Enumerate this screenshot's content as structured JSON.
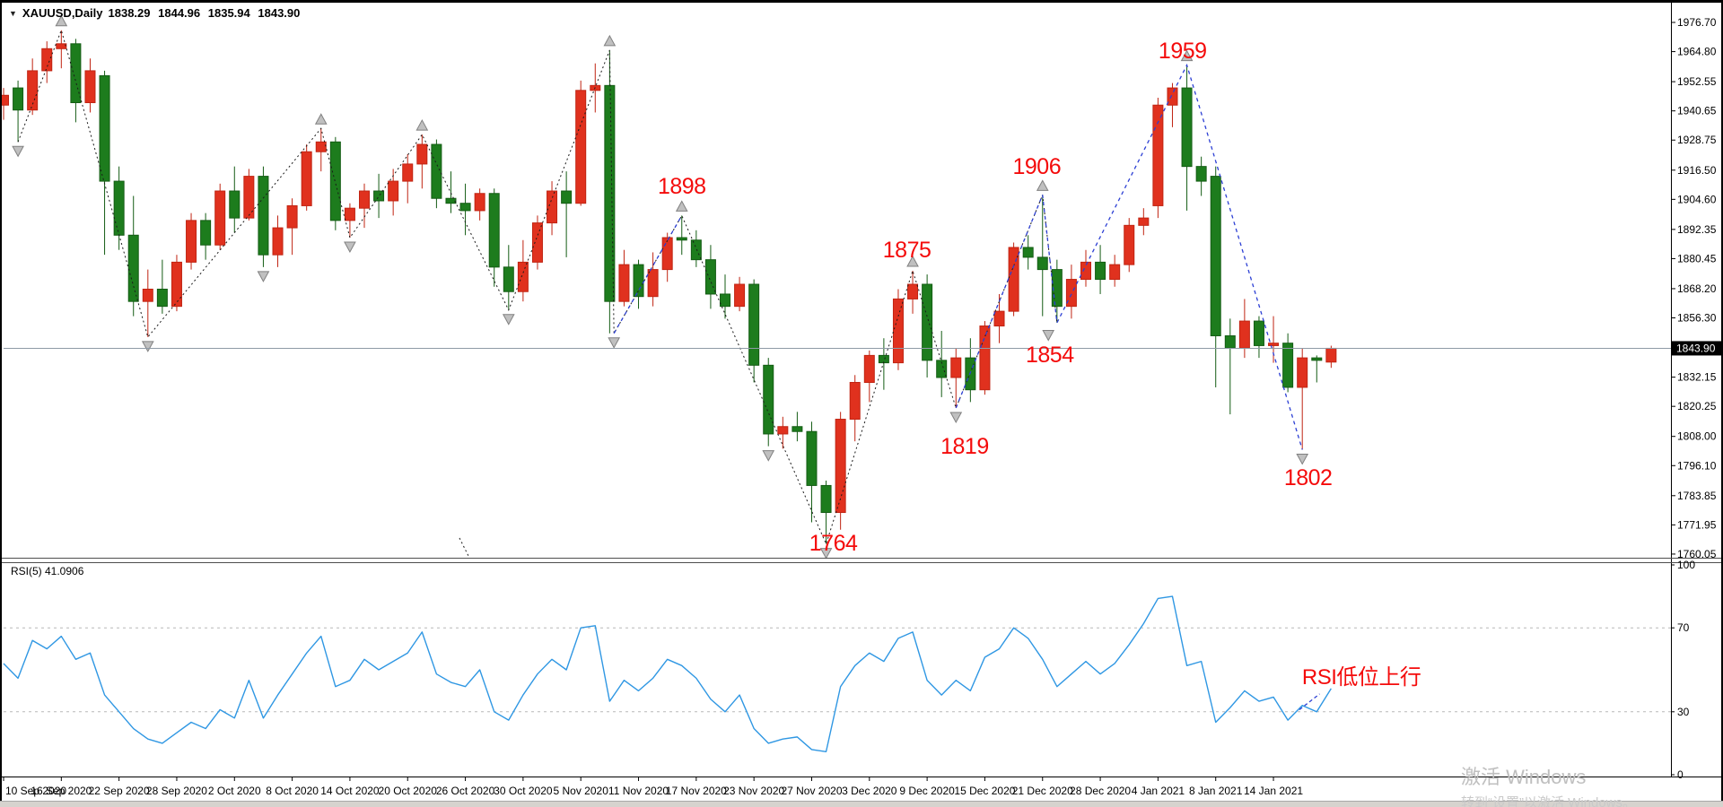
{
  "header": {
    "dropdown_icon": "▼",
    "symbol": "XAUUSD,Daily",
    "open": "1838.29",
    "high": "1844.96",
    "low": "1835.94",
    "close": "1843.90"
  },
  "watermark": {
    "line1": "激活 Windows",
    "line2": "转到“设置”以激活 Windows。"
  },
  "rsi": {
    "label": "RSI(5) 41.0906",
    "period": 5,
    "current_value": "41.0906"
  },
  "price_axis": {
    "labels": [
      "1976.70",
      "1964.80",
      "1952.55",
      "1940.65",
      "1928.75",
      "1916.50",
      "1904.60",
      "1892.35",
      "1880.45",
      "1868.20",
      "1856.30",
      "1843.90",
      "1832.15",
      "1820.25",
      "1808.00",
      "1796.10",
      "1783.85",
      "1771.95",
      "1760.05"
    ],
    "current": "1843.90"
  },
  "time_axis": {
    "labels": [
      {
        "text": "10 Sep 2020",
        "bar": 0
      },
      {
        "text": "16 Sep 2020",
        "bar": 4
      },
      {
        "text": "22 Sep 2020",
        "bar": 8
      },
      {
        "text": "28 Sep 2020",
        "bar": 12
      },
      {
        "text": "2 Oct 2020",
        "bar": 16
      },
      {
        "text": "8 Oct 2020",
        "bar": 20
      },
      {
        "text": "14 Oct 2020",
        "bar": 24
      },
      {
        "text": "20 Oct 2020",
        "bar": 28
      },
      {
        "text": "26 Oct 2020",
        "bar": 32
      },
      {
        "text": "30 Oct 2020",
        "bar": 36
      },
      {
        "text": "5 Nov 2020",
        "bar": 40
      },
      {
        "text": "11 Nov 2020",
        "bar": 44
      },
      {
        "text": "17 Nov 2020",
        "bar": 48
      },
      {
        "text": "23 Nov 2020",
        "bar": 52
      },
      {
        "text": "27 Nov 2020",
        "bar": 56
      },
      {
        "text": "3 Dec 2020",
        "bar": 60
      },
      {
        "text": "9 Dec 2020",
        "bar": 64
      },
      {
        "text": "15 Dec 2020",
        "bar": 68
      },
      {
        "text": "21 Dec 2020",
        "bar": 72
      },
      {
        "text": "28 Dec 2020",
        "bar": 76
      },
      {
        "text": "4 Jan 2021",
        "bar": 80
      },
      {
        "text": "8 Jan 2021",
        "bar": 84
      },
      {
        "text": "14 Jan 2021",
        "bar": 88
      }
    ]
  },
  "chart_data": {
    "type": "candlestick",
    "symbol": "XAUUSD",
    "timeframe": "Daily",
    "price_range": [
      1760.05,
      1976.7
    ],
    "current_price": 1843.9,
    "up_color_note": "red = bullish, green = bearish (Chinese convention)",
    "bars": [
      [
        1943,
        1950,
        1937,
        1947
      ],
      [
        1950,
        1953,
        1928,
        1941
      ],
      [
        1941,
        1962,
        1939,
        1957
      ],
      [
        1957,
        1969,
        1952,
        1966
      ],
      [
        1966,
        1973.5,
        1958,
        1968
      ],
      [
        1968,
        1970,
        1936,
        1944
      ],
      [
        1944,
        1962,
        1940,
        1957
      ],
      [
        1955,
        1957,
        1882,
        1912
      ],
      [
        1912,
        1918,
        1884,
        1890
      ],
      [
        1890,
        1906,
        1857,
        1863
      ],
      [
        1863,
        1876,
        1848.5,
        1868
      ],
      [
        1868,
        1880,
        1858,
        1861
      ],
      [
        1861,
        1882,
        1859,
        1879
      ],
      [
        1879,
        1899,
        1876,
        1896
      ],
      [
        1896,
        1899,
        1880,
        1886
      ],
      [
        1886,
        1911,
        1884,
        1908
      ],
      [
        1908,
        1918,
        1891,
        1897
      ],
      [
        1897,
        1917,
        1896,
        1914
      ],
      [
        1914,
        1918,
        1877,
        1882
      ],
      [
        1882,
        1898,
        1877,
        1893
      ],
      [
        1893,
        1905,
        1882,
        1902
      ],
      [
        1902,
        1927,
        1900,
        1924
      ],
      [
        1924,
        1933.5,
        1916,
        1928
      ],
      [
        1928,
        1930,
        1892,
        1896
      ],
      [
        1896,
        1903,
        1889,
        1901
      ],
      [
        1901,
        1911,
        1893,
        1908
      ],
      [
        1908,
        1915,
        1897,
        1904
      ],
      [
        1904,
        1917,
        1898,
        1912
      ],
      [
        1912,
        1923,
        1903,
        1919
      ],
      [
        1919,
        1931,
        1909,
        1927
      ],
      [
        1927,
        1929,
        1901,
        1905
      ],
      [
        1905,
        1916,
        1899,
        1903
      ],
      [
        1903,
        1911,
        1890,
        1900
      ],
      [
        1900,
        1909,
        1896,
        1907
      ],
      [
        1907,
        1909,
        1869,
        1877
      ],
      [
        1877,
        1886,
        1859.5,
        1867
      ],
      [
        1867,
        1888,
        1863,
        1879
      ],
      [
        1879,
        1898,
        1876,
        1895
      ],
      [
        1895,
        1912,
        1890,
        1908
      ],
      [
        1908,
        1916,
        1881,
        1903
      ],
      [
        1903,
        1953,
        1902,
        1949
      ],
      [
        1949,
        1960,
        1940,
        1951
      ],
      [
        1951,
        1965.4,
        1850,
        1863
      ],
      [
        1863,
        1884,
        1861,
        1878
      ],
      [
        1878,
        1880,
        1860,
        1865
      ],
      [
        1865,
        1883,
        1861,
        1876
      ],
      [
        1876,
        1891,
        1871,
        1889
      ],
      [
        1889,
        1898,
        1882,
        1888
      ],
      [
        1888,
        1892,
        1877,
        1880
      ],
      [
        1880,
        1886,
        1860,
        1866
      ],
      [
        1866,
        1874,
        1856,
        1861
      ],
      [
        1861,
        1873,
        1859,
        1870
      ],
      [
        1870,
        1872,
        1830,
        1837
      ],
      [
        1837,
        1840,
        1804,
        1809
      ],
      [
        1809,
        1816,
        1803,
        1812
      ],
      [
        1812,
        1818,
        1806,
        1810
      ],
      [
        1810,
        1814,
        1773,
        1788
      ],
      [
        1788,
        1790,
        1764.2,
        1777
      ],
      [
        1777,
        1818,
        1770,
        1815
      ],
      [
        1815,
        1833,
        1806,
        1830
      ],
      [
        1830,
        1843,
        1822,
        1841
      ],
      [
        1841,
        1848,
        1827,
        1838
      ],
      [
        1838,
        1868,
        1835,
        1864
      ],
      [
        1864,
        1875.5,
        1858,
        1870
      ],
      [
        1870,
        1874,
        1832,
        1839
      ],
      [
        1839,
        1851,
        1824,
        1832
      ],
      [
        1832,
        1844,
        1819.6,
        1840
      ],
      [
        1840,
        1848,
        1822,
        1827
      ],
      [
        1827,
        1855,
        1825,
        1853
      ],
      [
        1853,
        1866,
        1846,
        1859
      ],
      [
        1859,
        1887,
        1857,
        1885
      ],
      [
        1885,
        1890,
        1876,
        1881
      ],
      [
        1881,
        1906.4,
        1857,
        1876
      ],
      [
        1876,
        1880,
        1854.3,
        1861
      ],
      [
        1861,
        1878,
        1856,
        1872
      ],
      [
        1872,
        1884,
        1869,
        1879
      ],
      [
        1879,
        1886,
        1866,
        1872
      ],
      [
        1872,
        1882,
        1869,
        1878
      ],
      [
        1878,
        1897,
        1875,
        1894
      ],
      [
        1894,
        1901,
        1890,
        1897
      ],
      [
        1902,
        1946,
        1897,
        1943
      ],
      [
        1943,
        1952,
        1934,
        1950
      ],
      [
        1950,
        1959.3,
        1900,
        1918
      ],
      [
        1918,
        1922,
        1906,
        1912
      ],
      [
        1914,
        1918,
        1828,
        1849
      ],
      [
        1849,
        1856,
        1817,
        1844
      ],
      [
        1844,
        1864,
        1840,
        1855
      ],
      [
        1855,
        1857,
        1840,
        1845
      ],
      [
        1845,
        1857,
        1838,
        1846
      ],
      [
        1846,
        1850,
        1826,
        1828
      ],
      [
        1828,
        1844,
        1802.6,
        1840
      ],
      [
        1840,
        1841,
        1830,
        1839
      ],
      [
        1838.29,
        1844.96,
        1835.94,
        1843.9
      ]
    ],
    "zigzag_black": [
      [
        1,
        1928
      ],
      [
        4,
        1973.5
      ],
      [
        10,
        1848.5
      ],
      [
        22,
        1933.5
      ],
      [
        24,
        1889
      ],
      [
        29,
        1931
      ],
      [
        35,
        1859.5
      ],
      [
        42,
        1965.4
      ],
      [
        42.3,
        1850
      ],
      [
        47,
        1898
      ],
      [
        57,
        1764.2
      ],
      [
        63,
        1875.5
      ],
      [
        66,
        1819.6
      ],
      [
        72,
        1906.4
      ],
      [
        73,
        1854.3
      ]
    ],
    "zigzag_blue": [
      [
        [
          42.3,
          1850
        ],
        [
          47,
          1898
        ]
      ],
      [
        [
          66,
          1819.6
        ],
        [
          72,
          1906.4
        ],
        [
          73,
          1854.3
        ],
        [
          82,
          1959.3
        ],
        [
          90,
          1802.6
        ]
      ]
    ],
    "stray_dotted_segment": [
      [
        512,
        600
      ],
      [
        523,
        622
      ]
    ],
    "fractal_up": [
      [
        4,
        1973.5
      ],
      [
        22,
        1933.5
      ],
      [
        29,
        1931
      ],
      [
        42,
        1965.4
      ],
      [
        47,
        1898
      ],
      [
        63,
        1875.5
      ],
      [
        72,
        1906.4
      ],
      [
        82,
        1959.3
      ]
    ],
    "fractal_down": [
      [
        1,
        1928
      ],
      [
        10,
        1848.5
      ],
      [
        18,
        1877
      ],
      [
        24,
        1889
      ],
      [
        35,
        1859.5
      ],
      [
        42.3,
        1850
      ],
      [
        53,
        1804
      ],
      [
        57,
        1764.2
      ],
      [
        66,
        1819.6
      ],
      [
        72.4,
        1853
      ],
      [
        90,
        1802.6
      ]
    ],
    "annotations": [
      {
        "text": "1898",
        "bar": 47.0,
        "price": 1910
      },
      {
        "text": "1875",
        "bar": 62.6,
        "price": 1884
      },
      {
        "text": "1906",
        "bar": 71.6,
        "price": 1918
      },
      {
        "text": "1854",
        "bar": 72.5,
        "price": 1841
      },
      {
        "text": "1819",
        "bar": 66.6,
        "price": 1804
      },
      {
        "text": "1764",
        "bar": 57.5,
        "price": 1764.5
      },
      {
        "text": "1959",
        "bar": 81.7,
        "price": 1965
      },
      {
        "text": "1802",
        "bar": 90.4,
        "price": 1791
      }
    ],
    "rsi_panel": {
      "values": [
        53,
        46,
        64,
        60,
        66,
        55,
        58,
        38,
        30,
        22,
        17,
        15,
        20,
        25,
        22,
        31,
        27,
        45,
        27,
        38,
        48,
        58,
        66,
        42,
        45,
        55,
        50,
        54,
        58,
        68,
        48,
        44,
        42,
        50,
        30,
        26,
        38,
        48,
        55,
        50,
        70,
        71,
        35,
        45,
        40,
        46,
        55,
        52,
        46,
        36,
        30,
        38,
        22,
        15,
        17,
        18,
        12,
        11,
        42,
        52,
        58,
        54,
        65,
        68,
        45,
        38,
        45,
        40,
        56,
        60,
        70,
        65,
        55,
        42,
        48,
        54,
        48,
        53,
        62,
        72,
        84,
        85,
        52,
        54,
        25,
        32,
        40,
        35,
        37,
        26,
        33,
        30,
        41.09
      ],
      "levels": [
        100,
        70,
        30,
        0
      ],
      "dashed_levels": [
        70,
        30
      ],
      "annotation": {
        "text": "RSI低位上行",
        "bar": 94.1,
        "value": 45.3
      },
      "blue_segment": [
        [
          89.8,
          31
        ],
        [
          91.2,
          38.5
        ]
      ]
    },
    "colors": {
      "bull": "#e0311e",
      "bull_border": "#c02412",
      "bear": "#1d7c1d",
      "bear_border": "#145c14",
      "zigzag": "#1a1a1a",
      "trend_blue": "#2c3fd4",
      "rsi_line": "#2f97e3",
      "price_line": "#8e9aa6",
      "annotation": "#f40b0b",
      "level_dash": "#b8b8b8",
      "axis_text": "#000000",
      "tag_bg": "#000000",
      "tag_text": "#ffffff",
      "arrow_fill": "#c0c0c0",
      "arrow_border": "#808080",
      "frame": "#000000",
      "separator": "#4d4d4d",
      "bottom_strip": "#d6d3ce"
    }
  }
}
